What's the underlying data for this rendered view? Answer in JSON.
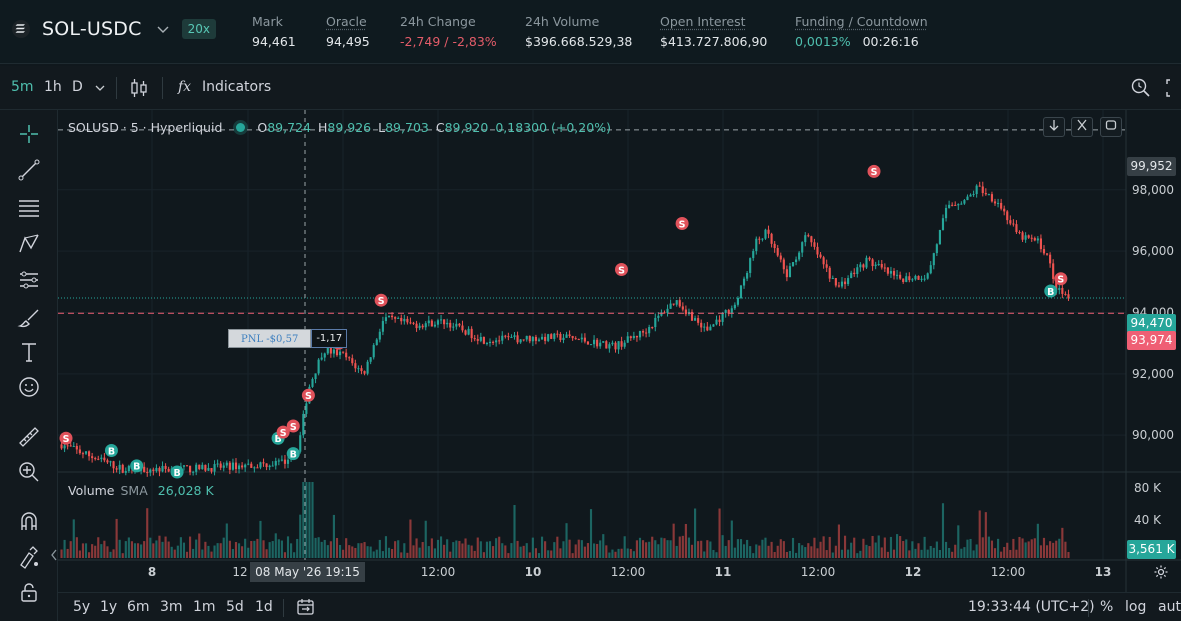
{
  "market": {
    "symbol": "SOL-USDC",
    "leverage": "20x",
    "stats": [
      {
        "label": "Mark",
        "value": "94,461"
      },
      {
        "label": "Oracle",
        "value": "94,495"
      },
      {
        "label": "24h Change",
        "value": "-2,749 / -2,83%"
      },
      {
        "label": "24h Volume",
        "value": "$396.668.529,38"
      },
      {
        "label": "Open Interest",
        "value": "$413.727.806,90"
      },
      {
        "label": "Funding / Countdown",
        "value": "0,0013%",
        "value2": "00:26:16"
      }
    ]
  },
  "toolbar": {
    "intervals": [
      "5m",
      "1h",
      "D"
    ],
    "active_interval": "5m",
    "indicators_label": "Indicators",
    "fx_label": "fx"
  },
  "legend": {
    "title": "SOLUSD · 5 · Hyperliquid",
    "o_key": "O",
    "o_val": "89,724",
    "h_key": "H",
    "h_val": "89,926",
    "l_key": "L",
    "l_val": "89,703",
    "c_key": "C",
    "c_val": "89,920",
    "change": "0,18300 (+0,20%)"
  },
  "volume_legend": {
    "label": "Volume",
    "sma": "SMA",
    "value": "26,028 K"
  },
  "price_axis": {
    "ticks": [
      "98,000",
      "96,000",
      "94,000",
      "92,000",
      "90,000"
    ],
    "top_marker": "99,952",
    "last_price": "94,470",
    "position_price": "93,974",
    "volume_ticks": [
      "80 K",
      "40 K"
    ],
    "volume_last": "3,561 K"
  },
  "time_axis": {
    "ticks": [
      "8",
      "12",
      "12:00",
      "10",
      "12:00",
      "11",
      "12:00",
      "12",
      "12:00",
      "13"
    ],
    "crosshair_label": "08 May '26   19:15"
  },
  "pnl_tag": {
    "label": "PNL -$0,57",
    "size": "-1,17"
  },
  "bottom": {
    "ranges": [
      "5y",
      "1y",
      "6m",
      "3m",
      "1m",
      "5d",
      "1d"
    ],
    "time": "19:33:44 (UTC+2)",
    "pct": "%",
    "log": "log",
    "auto": "auto"
  },
  "colors": {
    "up": "#26a69a",
    "down": "#ef5350",
    "sell_marker": "#e0525b",
    "buy_marker": "#26a69a",
    "last_price_tag": "#26a69a",
    "position_tag": "#ef5f74"
  },
  "chart_data": {
    "type": "candlestick",
    "title": "SOLUSD · 5 · Hyperliquid",
    "ylim": [
      88800,
      100600
    ],
    "price_path": [
      {
        "t": 0.0,
        "p": 89700
      },
      {
        "t": 0.03,
        "p": 89300
      },
      {
        "t": 0.06,
        "p": 88900
      },
      {
        "t": 0.13,
        "p": 88900
      },
      {
        "t": 0.22,
        "p": 89100
      },
      {
        "t": 0.235,
        "p": 89600
      },
      {
        "t": 0.245,
        "p": 91500
      },
      {
        "t": 0.26,
        "p": 92800
      },
      {
        "t": 0.28,
        "p": 92600
      },
      {
        "t": 0.29,
        "p": 92300
      },
      {
        "t": 0.3,
        "p": 92000
      },
      {
        "t": 0.32,
        "p": 93800
      },
      {
        "t": 0.35,
        "p": 93600
      },
      {
        "t": 0.38,
        "p": 93700
      },
      {
        "t": 0.42,
        "p": 93100
      },
      {
        "t": 0.5,
        "p": 93200
      },
      {
        "t": 0.55,
        "p": 92900
      },
      {
        "t": 0.58,
        "p": 93400
      },
      {
        "t": 0.6,
        "p": 94100
      },
      {
        "t": 0.61,
        "p": 94400
      },
      {
        "t": 0.64,
        "p": 93400
      },
      {
        "t": 0.67,
        "p": 94300
      },
      {
        "t": 0.69,
        "p": 96300
      },
      {
        "t": 0.7,
        "p": 96600
      },
      {
        "t": 0.72,
        "p": 95200
      },
      {
        "t": 0.74,
        "p": 96500
      },
      {
        "t": 0.77,
        "p": 94800
      },
      {
        "t": 0.8,
        "p": 95700
      },
      {
        "t": 0.83,
        "p": 95100
      },
      {
        "t": 0.86,
        "p": 95200
      },
      {
        "t": 0.88,
        "p": 97500
      },
      {
        "t": 0.9,
        "p": 97700
      },
      {
        "t": 0.91,
        "p": 98100
      },
      {
        "t": 0.93,
        "p": 97600
      },
      {
        "t": 0.95,
        "p": 96500
      },
      {
        "t": 0.97,
        "p": 96300
      },
      {
        "t": 0.98,
        "p": 95800
      },
      {
        "t": 0.985,
        "p": 95000
      },
      {
        "t": 0.99,
        "p": 94700
      },
      {
        "t": 1.0,
        "p": 94470
      }
    ],
    "trade_markers": [
      {
        "type": "S",
        "t": 0.0,
        "p": 89900
      },
      {
        "type": "B",
        "t": 0.045,
        "p": 89500
      },
      {
        "type": "B",
        "t": 0.07,
        "p": 89000
      },
      {
        "type": "B",
        "t": 0.11,
        "p": 88800
      },
      {
        "type": "B",
        "t": 0.21,
        "p": 89900
      },
      {
        "type": "S",
        "t": 0.215,
        "p": 90100
      },
      {
        "type": "S",
        "t": 0.225,
        "p": 90300
      },
      {
        "type": "B",
        "t": 0.225,
        "p": 89400
      },
      {
        "type": "S",
        "t": 0.24,
        "p": 91300
      },
      {
        "type": "S",
        "t": 0.27,
        "p": 93000
      },
      {
        "type": "S",
        "t": 0.312,
        "p": 94400
      },
      {
        "type": "S",
        "t": 0.55,
        "p": 95400
      },
      {
        "type": "S",
        "t": 0.61,
        "p": 96900
      },
      {
        "type": "S",
        "t": 0.8,
        "p": 98600
      },
      {
        "type": "B",
        "t": 0.975,
        "p": 94700
      },
      {
        "type": "S",
        "t": 0.985,
        "p": 95100
      }
    ],
    "volume_axis_max": 100000
  }
}
